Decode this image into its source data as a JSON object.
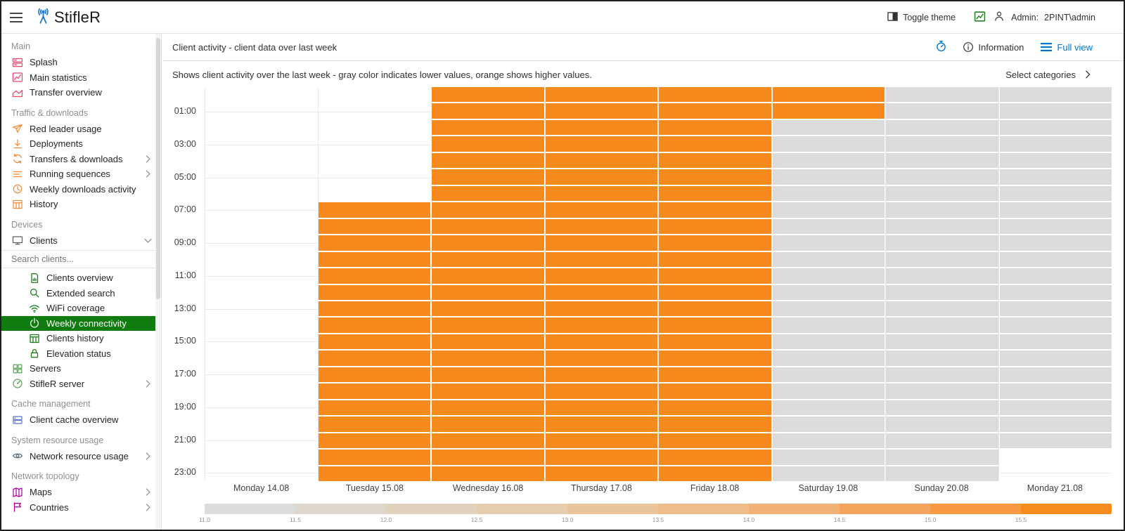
{
  "topbar": {
    "app_name": "StifleR",
    "toggle_theme_label": "Toggle theme",
    "admin_label": "Admin:",
    "admin_value": "2PINT\\admin"
  },
  "sidebar": {
    "sections": [
      {
        "header": "Main",
        "items": [
          {
            "label": "Splash",
            "icon": "splash-icon",
            "color": "#e8466b"
          },
          {
            "label": "Main statistics",
            "icon": "statistics-icon",
            "color": "#e8466b"
          },
          {
            "label": "Transfer overview",
            "icon": "area-chart-icon",
            "color": "#e8466b"
          }
        ]
      },
      {
        "header": "Traffic & downloads",
        "items": [
          {
            "label": "Red leader usage",
            "icon": "plane-icon",
            "color": "#f08c3a"
          },
          {
            "label": "Deployments",
            "icon": "download-icon",
            "color": "#f08c3a"
          },
          {
            "label": "Transfers & downloads",
            "icon": "sync-icon",
            "color": "#f08c3a",
            "chevron": "right"
          },
          {
            "label": "Running sequences",
            "icon": "sequence-icon",
            "color": "#f08c3a",
            "chevron": "right"
          },
          {
            "label": "Weekly downloads activity",
            "icon": "clock-icon",
            "color": "#f08c3a"
          },
          {
            "label": "History",
            "icon": "table-icon",
            "color": "#f08c3a"
          }
        ]
      },
      {
        "header": "Devices",
        "items": [
          {
            "label": "Clients",
            "icon": "monitor-icon",
            "color": "#605e5c",
            "chevron": "down"
          },
          {
            "type": "search",
            "placeholder": "Search clients..."
          },
          {
            "label": "Clients overview",
            "icon": "document-icon",
            "color": "#107c10",
            "indent": true
          },
          {
            "label": "Extended search",
            "icon": "search-icon",
            "color": "#107c10",
            "indent": true
          },
          {
            "label": "WiFi coverage",
            "icon": "wifi-icon",
            "color": "#107c10",
            "indent": true
          },
          {
            "label": "Weekly connectivity",
            "icon": "power-icon",
            "color": "#ffffff",
            "indent": true,
            "selected": true
          },
          {
            "label": "Clients history",
            "icon": "table-icon",
            "color": "#107c10",
            "indent": true
          },
          {
            "label": "Elevation status",
            "icon": "lock-icon",
            "color": "#107c10",
            "indent": true
          },
          {
            "label": "Servers",
            "icon": "servers-icon",
            "color": "#57a557"
          },
          {
            "label": "StifleR server",
            "icon": "gauge-icon",
            "color": "#57a557",
            "chevron": "right"
          }
        ]
      },
      {
        "header": "Cache management",
        "items": [
          {
            "label": "Client cache overview",
            "icon": "drive-icon",
            "color": "#5b74db"
          }
        ]
      },
      {
        "header": "System resource usage",
        "items": [
          {
            "label": "Network resource usage",
            "icon": "eye-icon",
            "color": "#607087",
            "chevron": "right"
          }
        ]
      },
      {
        "header": "Network topology",
        "items": [
          {
            "label": "Maps",
            "icon": "map-icon",
            "color": "#b4009e",
            "chevron": "right"
          },
          {
            "label": "Countries",
            "icon": "flag-icon",
            "color": "#b4009e",
            "chevron": "right"
          }
        ]
      }
    ]
  },
  "header": {
    "title": "Client activity - client data over last week",
    "information_label": "Information",
    "full_view_label": "Full view"
  },
  "toolbar": {
    "description": "Shows client activity over the last week - gray color indicates lower values, orange shows higher values.",
    "select_categories_label": "Select categories"
  },
  "chart_data": {
    "type": "heatmap",
    "title": "Client activity - client data over last week",
    "x_categories": [
      "Monday 14.08",
      "Tuesday 15.08",
      "Wednesday 16.08",
      "Thursday 17.08",
      "Friday 18.08",
      "Saturday 19.08",
      "Sunday 20.08",
      "Monday 21.08"
    ],
    "y_axis": "hours 00:00-23:00, one row per hour, 24 rows top to bottom",
    "y_tick_labels": [
      "01:00",
      "03:00",
      "05:00",
      "07:00",
      "09:00",
      "11:00",
      "13:00",
      "15:00",
      "17:00",
      "19:00",
      "21:00",
      "23:00"
    ],
    "cell_states": {
      "H": "high activity (orange)",
      "L": "low activity (gray)",
      ".": "no data (blank)"
    },
    "columns": [
      {
        "day": "Monday 14.08",
        "pattern": "........................"
      },
      {
        "day": "Tuesday 15.08",
        "pattern": ".......HHHHHHHHHHHHHHHHH"
      },
      {
        "day": "Wednesday 16.08",
        "pattern": "HHHHHHHHHHHHHHHHHHHHHHHH"
      },
      {
        "day": "Thursday 17.08",
        "pattern": "HHHHHHHHHHHHHHHHHHHHHHHH"
      },
      {
        "day": "Friday 18.08",
        "pattern": "HHHHHHHHHHHHHHHHHHHHHHHH"
      },
      {
        "day": "Saturday 19.08",
        "pattern": "HHLLLLLLLLLLLLLLLLLLLLLL"
      },
      {
        "day": "Sunday 20.08",
        "pattern": "LLLLLLLLLLLLLLLLLLLLLLLL"
      },
      {
        "day": "Monday 21.08",
        "pattern": "LLLLLLLLLLLLLLLLLLLLLL.."
      }
    ],
    "colors": {
      "high": "#f68a1c",
      "low": "#dbdbdb"
    },
    "legend": {
      "position": "bottom",
      "min": 11.0,
      "max": 15.5,
      "step": 0.5,
      "tick_labels": [
        "11.0",
        "11.5",
        "12.0",
        "12.5",
        "13.0",
        "13.5",
        "14.0",
        "14.5",
        "15.0",
        "15.5"
      ],
      "segment_colors": [
        "#dbdbdb",
        "#ddd6cb",
        "#e1d2be",
        "#e6cdad",
        "#eac59b",
        "#eebd89",
        "#f1b175",
        "#f4a45d",
        "#f69941",
        "#f78c1e"
      ]
    }
  }
}
